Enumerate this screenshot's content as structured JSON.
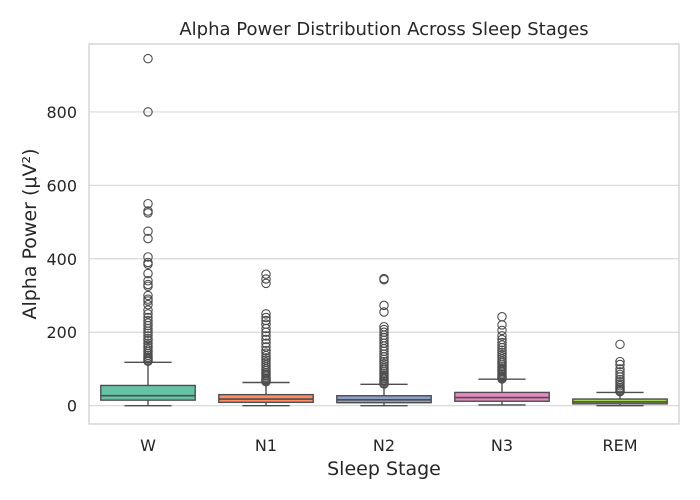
{
  "chart_data": {
    "type": "box",
    "title": "Alpha Power Distribution Across Sleep Stages",
    "xlabel": "Sleep Stage",
    "ylabel": "Alpha Power (μV²)",
    "ylim": [
      -50,
      985
    ],
    "yticks": [
      0,
      200,
      400,
      600,
      800
    ],
    "grid": true,
    "colors": {
      "W": "#66c2a5",
      "N1": "#fc8d62",
      "N2": "#8da0cb",
      "N3": "#e78ac3",
      "REM": "#a6d854"
    },
    "categories": [
      "W",
      "N1",
      "N2",
      "N3",
      "REM"
    ],
    "boxes": [
      {
        "name": "W",
        "whisker_low": 0,
        "q1": 15,
        "median": 27,
        "q3": 55,
        "whisker_high": 118,
        "outliers": [
          945,
          800,
          550,
          530,
          525,
          475,
          455,
          405,
          390,
          385,
          360,
          340,
          330,
          325,
          300,
          290,
          285,
          275,
          260,
          250,
          240,
          232,
          225,
          218,
          210,
          203,
          197,
          190,
          183,
          177,
          170,
          164,
          158,
          152,
          147,
          142,
          137,
          132,
          128,
          124,
          121
        ]
      },
      {
        "name": "N1",
        "whisker_low": 0,
        "q1": 9,
        "median": 18,
        "q3": 30,
        "whisker_high": 63,
        "outliers": [
          358,
          345,
          333,
          250,
          240,
          232,
          222,
          210,
          200,
          190,
          180,
          170,
          160,
          150,
          143,
          136,
          130,
          124,
          118,
          112,
          106,
          100,
          95,
          90,
          86,
          82,
          78,
          74,
          71,
          68,
          65
        ]
      },
      {
        "name": "N2",
        "whisker_low": 0,
        "q1": 8,
        "median": 16,
        "q3": 27,
        "whisker_high": 58,
        "outliers": [
          346,
          343,
          273,
          255,
          215,
          207,
          200,
          192,
          185,
          178,
          170,
          162,
          155,
          148,
          140,
          133,
          126,
          120,
          114,
          108,
          102,
          97,
          92,
          87,
          82,
          78,
          74,
          70,
          66,
          62,
          59
        ]
      },
      {
        "name": "N3",
        "whisker_low": 2,
        "q1": 12,
        "median": 22,
        "q3": 36,
        "whisker_high": 72,
        "outliers": [
          242,
          220,
          205,
          190,
          180,
          172,
          165,
          158,
          151,
          145,
          139,
          133,
          127,
          121,
          116,
          111,
          106,
          101,
          97,
          93,
          89,
          85,
          81,
          78,
          75,
          73
        ]
      },
      {
        "name": "REM",
        "whisker_low": 0,
        "q1": 5,
        "median": 10,
        "q3": 18,
        "whisker_high": 36,
        "outliers": [
          167,
          120,
          112,
          100,
          92,
          85,
          78,
          71,
          65,
          59,
          54,
          49,
          45,
          41,
          38
        ]
      }
    ]
  }
}
